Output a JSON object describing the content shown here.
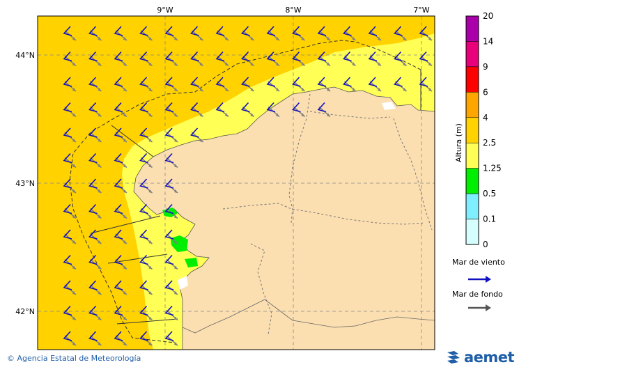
{
  "map": {
    "lon_labels": [
      "9°W",
      "8°W",
      "7°W"
    ],
    "lat_labels": [
      "44°N",
      "43°N",
      "42°N"
    ],
    "colors": {
      "sea_high": "#FFD200",
      "sea_mid": "#FFFF55",
      "sea_low": "#00EE00",
      "land": "#FCDFB0",
      "wind_sea_arrow": "#1010C0",
      "swell_arrow": "#808080"
    }
  },
  "legend": {
    "title": "Altura (m)",
    "levels": [
      "20",
      "14",
      "9",
      "6",
      "4",
      "2.5",
      "1.25",
      "0.5",
      "0.1",
      "0"
    ],
    "colors": [
      "#AA00AA",
      "#E8007A",
      "#FF0000",
      "#FFA500",
      "#FFD200",
      "#FFFF55",
      "#00EE00",
      "#7FEFFF",
      "#D5FFFF"
    ],
    "wind_sea_label": "Mar de viento",
    "swell_label": "Mar de fondo"
  },
  "footer": {
    "credit": "© Agencia Estatal de Meteorología",
    "logo_text": "aemet"
  }
}
